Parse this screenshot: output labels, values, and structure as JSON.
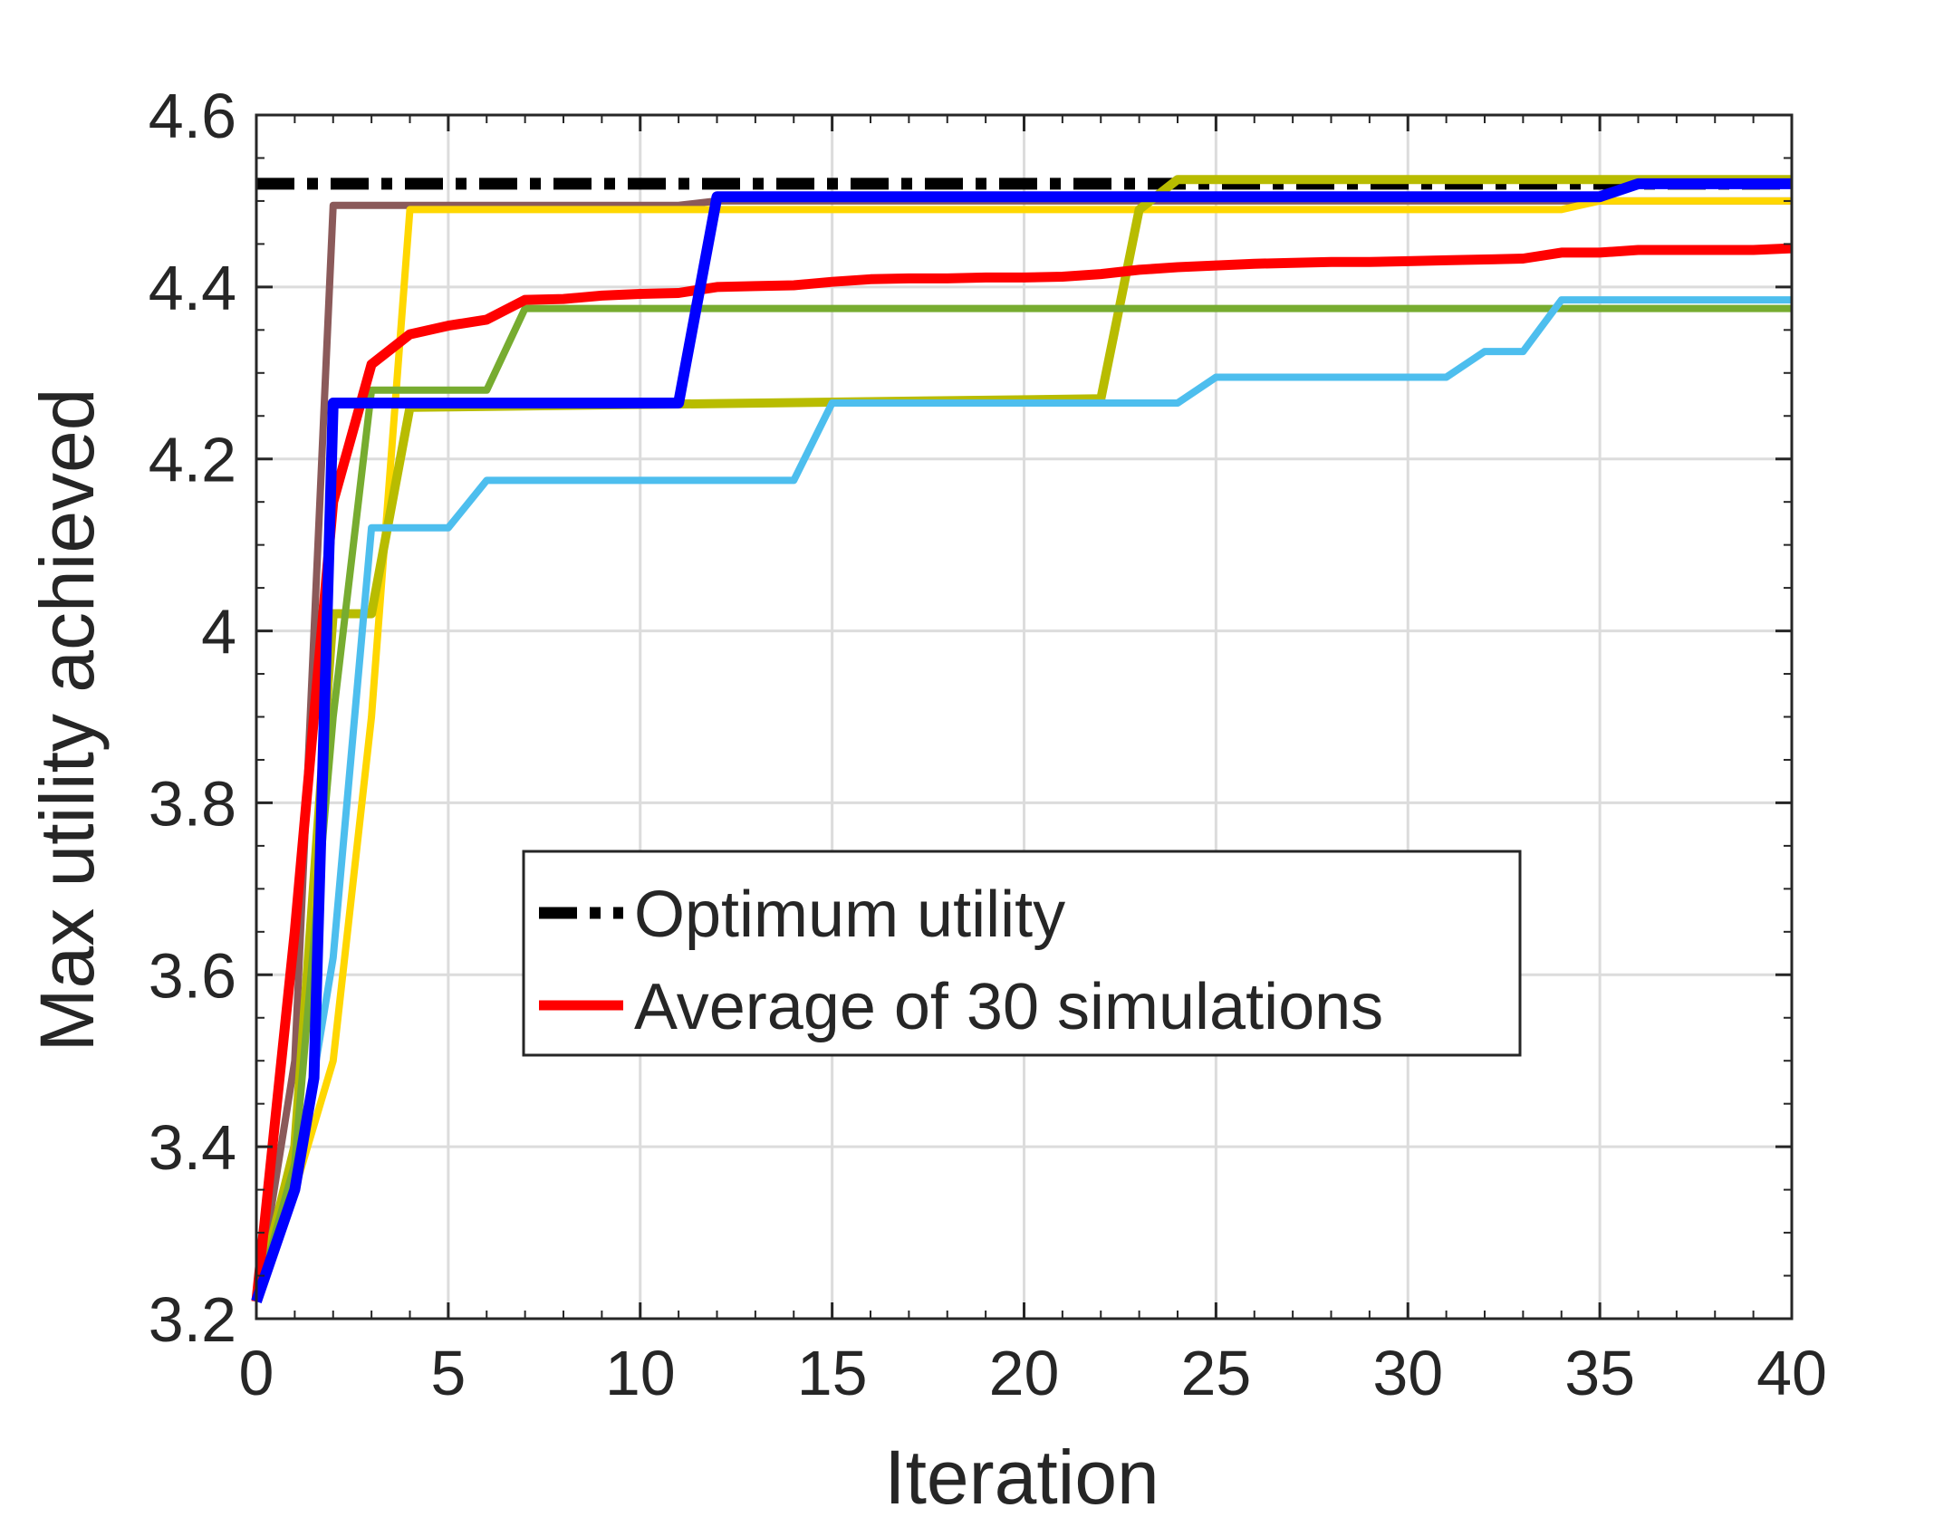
{
  "chart_data": {
    "type": "line",
    "title": "",
    "xlabel": "Iteration",
    "ylabel": "Max utility achieved",
    "xlim": [
      0,
      40
    ],
    "ylim": [
      3.2,
      4.6
    ],
    "xticks": [
      "0",
      "5",
      "10",
      "15",
      "20",
      "25",
      "30",
      "35",
      "40"
    ],
    "yticks": [
      "3.2",
      "3.4",
      "3.6",
      "3.8",
      "4",
      "4.2",
      "4.4",
      "4.6"
    ],
    "grid": true,
    "legend_position": "center",
    "series": [
      {
        "name": "Optimum utility",
        "color": "#000000",
        "style": "dashdot",
        "in_legend": true,
        "points": [
          [
            0,
            4.52
          ],
          [
            40,
            4.52
          ]
        ]
      },
      {
        "name": "Simulation (brown)",
        "color": "#8B5A5A",
        "style": "solid",
        "in_legend": false,
        "points": [
          [
            0,
            3.22
          ],
          [
            1,
            3.5
          ],
          [
            2,
            4.495
          ],
          [
            11,
            4.495
          ],
          [
            12,
            4.5
          ],
          [
            36,
            4.5
          ],
          [
            40,
            4.5
          ]
        ]
      },
      {
        "name": "Simulation (yellow)",
        "color": "#FFD700",
        "style": "solid",
        "in_legend": false,
        "points": [
          [
            0,
            3.22
          ],
          [
            1,
            3.35
          ],
          [
            2,
            3.5
          ],
          [
            3,
            3.9
          ],
          [
            4,
            4.49
          ],
          [
            34,
            4.49
          ],
          [
            35,
            4.5
          ],
          [
            40,
            4.5
          ]
        ]
      },
      {
        "name": "Simulation (olive)",
        "color": "#B8BC00",
        "style": "solid",
        "in_legend": false,
        "points": [
          [
            0,
            3.22
          ],
          [
            1,
            3.4
          ],
          [
            2,
            4.02
          ],
          [
            3,
            4.02
          ],
          [
            4,
            4.26
          ],
          [
            22,
            4.27
          ],
          [
            23,
            4.49
          ],
          [
            24,
            4.525
          ],
          [
            40,
            4.525
          ]
        ]
      },
      {
        "name": "Simulation (green)",
        "color": "#77AC30",
        "style": "solid",
        "in_legend": false,
        "points": [
          [
            0,
            3.22
          ],
          [
            1,
            3.38
          ],
          [
            2,
            3.9
          ],
          [
            3,
            4.28
          ],
          [
            6,
            4.28
          ],
          [
            7,
            4.375
          ],
          [
            40,
            4.375
          ]
        ]
      },
      {
        "name": "Simulation (light blue)",
        "color": "#4DBEEE",
        "style": "solid",
        "in_legend": false,
        "points": [
          [
            0,
            3.22
          ],
          [
            1,
            3.35
          ],
          [
            2,
            3.62
          ],
          [
            3,
            4.12
          ],
          [
            5,
            4.12
          ],
          [
            6,
            4.175
          ],
          [
            14,
            4.175
          ],
          [
            15,
            4.265
          ],
          [
            24,
            4.265
          ],
          [
            25,
            4.295
          ],
          [
            31,
            4.295
          ],
          [
            32,
            4.325
          ],
          [
            33,
            4.325
          ],
          [
            34,
            4.385
          ],
          [
            40,
            4.385
          ]
        ]
      },
      {
        "name": "Average of 30 simulations",
        "color": "#FF0000",
        "style": "solid",
        "in_legend": true,
        "points": [
          [
            0,
            3.22
          ],
          [
            1,
            3.65
          ],
          [
            2,
            4.15
          ],
          [
            3,
            4.31
          ],
          [
            4,
            4.345
          ],
          [
            5,
            4.355
          ],
          [
            6,
            4.362
          ],
          [
            7,
            4.385
          ],
          [
            8,
            4.386
          ],
          [
            9,
            4.39
          ],
          [
            10,
            4.392
          ],
          [
            11,
            4.393
          ],
          [
            12,
            4.4
          ],
          [
            13,
            4.401
          ],
          [
            14,
            4.402
          ],
          [
            15,
            4.406
          ],
          [
            16,
            4.409
          ],
          [
            17,
            4.41
          ],
          [
            18,
            4.41
          ],
          [
            19,
            4.411
          ],
          [
            20,
            4.411
          ],
          [
            21,
            4.412
          ],
          [
            22,
            4.415
          ],
          [
            23,
            4.42
          ],
          [
            24,
            4.423
          ],
          [
            25,
            4.425
          ],
          [
            26,
            4.427
          ],
          [
            27,
            4.428
          ],
          [
            28,
            4.429
          ],
          [
            29,
            4.429
          ],
          [
            30,
            4.43
          ],
          [
            31,
            4.431
          ],
          [
            32,
            4.432
          ],
          [
            33,
            4.433
          ],
          [
            34,
            4.44
          ],
          [
            35,
            4.44
          ],
          [
            36,
            4.443
          ],
          [
            37,
            4.443
          ],
          [
            38,
            4.443
          ],
          [
            39,
            4.443
          ],
          [
            40,
            4.445
          ]
        ]
      },
      {
        "name": "Simulation (blue)",
        "color": "#0000FF",
        "style": "solid",
        "in_legend": false,
        "points": [
          [
            0,
            3.22
          ],
          [
            1,
            3.35
          ],
          [
            1.5,
            3.48
          ],
          [
            2,
            4.265
          ],
          [
            11,
            4.265
          ],
          [
            12,
            4.505
          ],
          [
            35,
            4.505
          ],
          [
            36,
            4.52
          ],
          [
            40,
            4.52
          ]
        ]
      }
    ]
  }
}
